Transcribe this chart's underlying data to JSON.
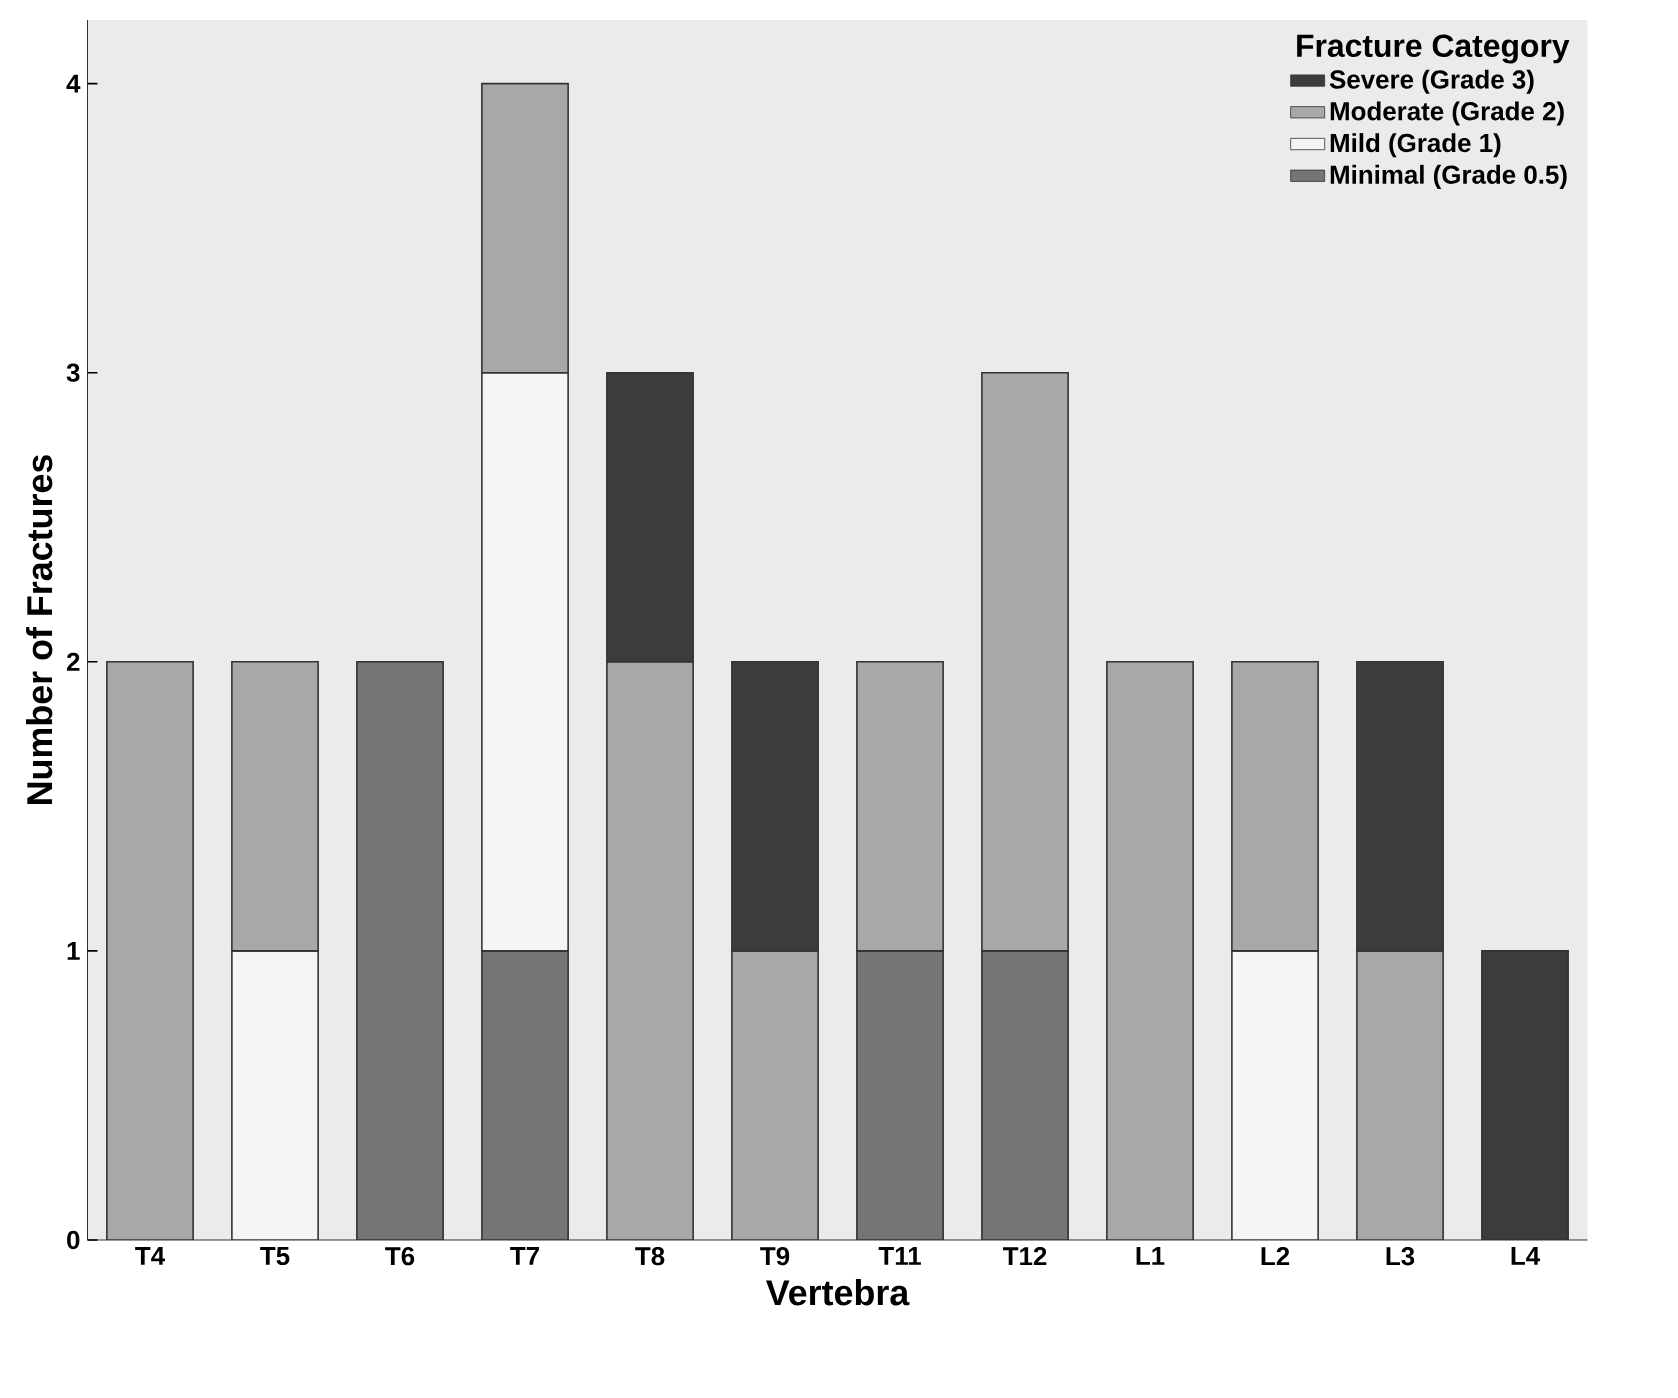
{
  "chart_data": {
    "type": "bar",
    "stacked": true,
    "xlabel": "Vertebra",
    "ylabel": "Number of Fractures",
    "legend_title": "Fracture Category",
    "legend": "top right",
    "categories": [
      "T4",
      "T5",
      "T6",
      "T7",
      "T8",
      "T9",
      "T11",
      "T12",
      "L1",
      "L2",
      "L3",
      "L4"
    ],
    "ylim": [
      0,
      4.22
    ],
    "yticks": [
      0,
      1,
      2,
      3,
      4
    ],
    "series": [
      {
        "name": "Minimal (Grade 0.5)",
        "color": "#757575",
        "values": [
          0,
          0,
          2,
          1,
          0,
          0,
          1,
          1,
          0,
          0,
          0,
          0
        ]
      },
      {
        "name": "Mild (Grade 1)",
        "color": "#f5f5f5",
        "values": [
          0,
          1,
          0,
          2,
          0,
          0,
          0,
          0,
          0,
          1,
          0,
          0
        ]
      },
      {
        "name": "Moderate (Grade 2)",
        "color": "#a8a8a8",
        "values": [
          2,
          1,
          0,
          1,
          2,
          1,
          1,
          2,
          2,
          1,
          1,
          0
        ]
      },
      {
        "name": "Severe (Grade 3)",
        "color": "#3c3c3c",
        "values": [
          0,
          0,
          0,
          0,
          1,
          1,
          0,
          0,
          0,
          0,
          1,
          1
        ]
      }
    ]
  }
}
